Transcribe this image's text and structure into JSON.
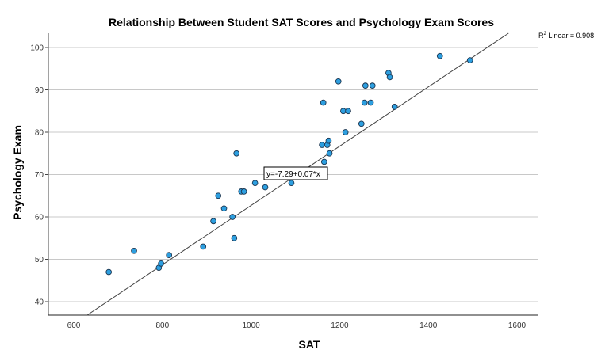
{
  "chart_data": {
    "type": "scatter",
    "title": "Relationship Between Student SAT Scores and Psychology Exam Scores",
    "xlabel": "SAT",
    "ylabel": "Psychology Exam",
    "xlim": [
      545,
      1655
    ],
    "ylim": [
      36.5,
      103.5
    ],
    "xticks": [
      600,
      800,
      1000,
      1200,
      1400,
      1600
    ],
    "yticks": [
      40,
      50,
      60,
      70,
      80,
      90,
      100
    ],
    "grid": "horizontal",
    "legend": "none",
    "r2_label": "Linear = 0.908",
    "r2_prefix": "R",
    "fit_line": {
      "equation": "y=-7.29+0.07*x",
      "intercept": -7.29,
      "slope": 0.07,
      "r_squared": 0.908
    },
    "point_color": "#2d9fe0",
    "points": [
      {
        "x": 679,
        "y": 47
      },
      {
        "x": 736,
        "y": 52
      },
      {
        "x": 792,
        "y": 48
      },
      {
        "x": 797,
        "y": 49
      },
      {
        "x": 815,
        "y": 51
      },
      {
        "x": 892,
        "y": 53
      },
      {
        "x": 915,
        "y": 59
      },
      {
        "x": 926,
        "y": 65
      },
      {
        "x": 939,
        "y": 62
      },
      {
        "x": 958,
        "y": 60
      },
      {
        "x": 962,
        "y": 55
      },
      {
        "x": 967,
        "y": 75
      },
      {
        "x": 978,
        "y": 66
      },
      {
        "x": 984,
        "y": 66
      },
      {
        "x": 1009,
        "y": 68
      },
      {
        "x": 1032,
        "y": 67
      },
      {
        "x": 1091,
        "y": 68
      },
      {
        "x": 1160,
        "y": 77
      },
      {
        "x": 1163,
        "y": 87
      },
      {
        "x": 1165,
        "y": 73
      },
      {
        "x": 1172,
        "y": 77
      },
      {
        "x": 1175,
        "y": 78
      },
      {
        "x": 1177,
        "y": 75
      },
      {
        "x": 1197,
        "y": 92
      },
      {
        "x": 1208,
        "y": 85
      },
      {
        "x": 1213,
        "y": 80
      },
      {
        "x": 1219,
        "y": 85
      },
      {
        "x": 1249,
        "y": 82
      },
      {
        "x": 1256,
        "y": 87
      },
      {
        "x": 1258,
        "y": 91
      },
      {
        "x": 1270,
        "y": 87
      },
      {
        "x": 1274,
        "y": 91
      },
      {
        "x": 1310,
        "y": 94
      },
      {
        "x": 1313,
        "y": 93
      },
      {
        "x": 1324,
        "y": 86
      },
      {
        "x": 1426,
        "y": 98
      },
      {
        "x": 1494,
        "y": 97
      }
    ]
  }
}
